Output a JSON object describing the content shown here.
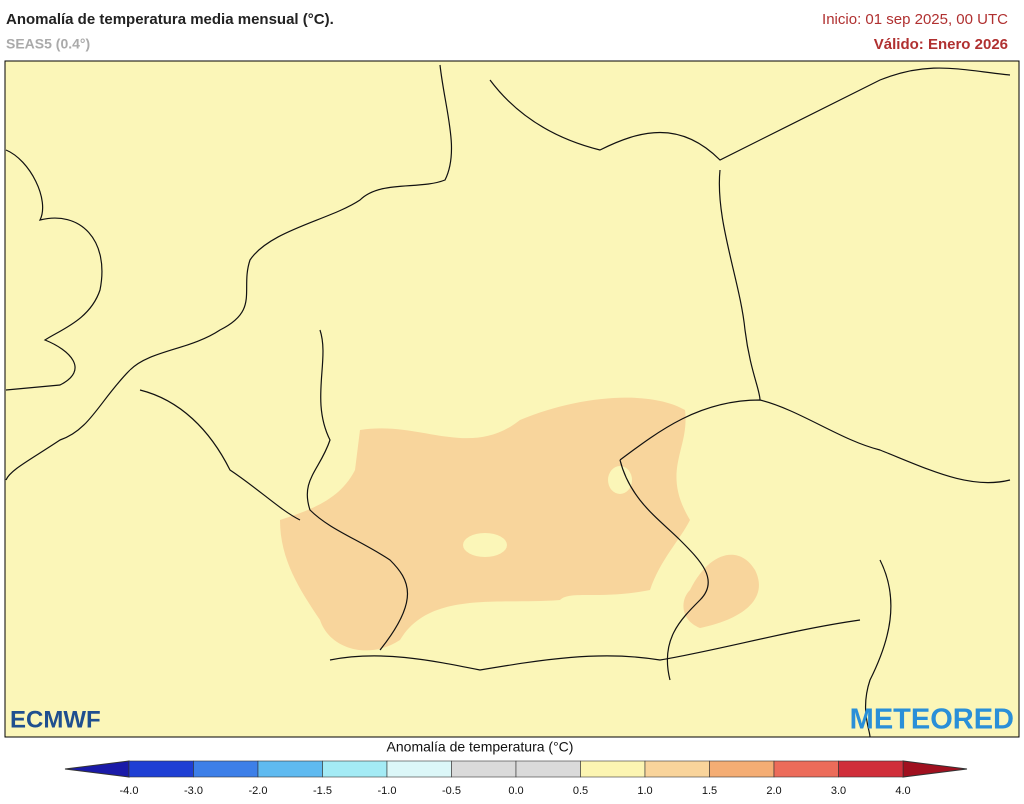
{
  "header": {
    "title": "Anomalía de temperatura media mensual (°C).",
    "subtitle": "SEAS5 (0.4°)",
    "init": "Inicio: 01 sep 2025, 00 UTC",
    "valid": "Válido: Enero 2026"
  },
  "logos": {
    "left": "ECMWF",
    "right": "METEORED"
  },
  "legend": {
    "title": "Anomalía de temperatura (°C)",
    "ticks": [
      "-4.0",
      "-3.0",
      "-2.0",
      "-1.5",
      "-1.0",
      "-0.5",
      "0.0",
      "0.5",
      "1.0",
      "1.5",
      "2.0",
      "3.0",
      "4.0"
    ],
    "colors": [
      "#1f3fd4",
      "#3d7fe8",
      "#5fbaf0",
      "#a4ebf5",
      "#dcf7f8",
      "#dadada",
      "#dadada",
      "#fcf5b2",
      "#f9d49b",
      "#f4ad74",
      "#ec6c5a",
      "#d02e3a"
    ],
    "low_color": "#1a1aa8",
    "high_color": "#a0101f"
  }
}
